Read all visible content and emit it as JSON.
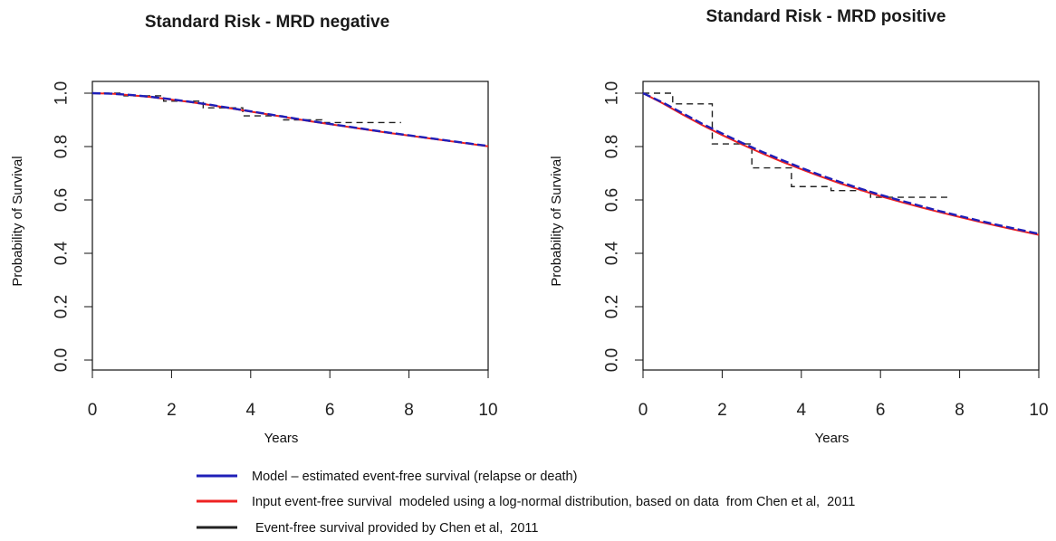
{
  "colors": {
    "model": "#1f1fb8",
    "input": "#ee2222",
    "observed": "#222222"
  },
  "chart_data": [
    {
      "type": "line",
      "title": "Standard Risk - MRD negative",
      "xlabel": "Years",
      "ylabel": "Probability of Survival",
      "xlim": [
        0,
        10
      ],
      "ylim": [
        0,
        1
      ],
      "xticks": [
        "0",
        "2",
        "4",
        "6",
        "8",
        "10"
      ],
      "yticks": [
        "0.0",
        "0.2",
        "0.4",
        "0.6",
        "0.8",
        "1.0"
      ],
      "series": [
        {
          "key": "model",
          "x": [
            0,
            0.5,
            1,
            1.5,
            2,
            2.5,
            3,
            3.5,
            4,
            4.5,
            5,
            5.5,
            6,
            6.5,
            7,
            7.5,
            8,
            8.5,
            9,
            9.5,
            10
          ],
          "y": [
            1.0,
            0.998,
            0.993,
            0.986,
            0.977,
            0.967,
            0.956,
            0.944,
            0.932,
            0.92,
            0.908,
            0.896,
            0.885,
            0.874,
            0.863,
            0.852,
            0.842,
            0.832,
            0.822,
            0.812,
            0.802
          ]
        },
        {
          "key": "input",
          "x": [
            0,
            0.5,
            1,
            1.5,
            2,
            2.5,
            3,
            3.5,
            4,
            4.5,
            5,
            5.5,
            6,
            6.5,
            7,
            7.5,
            8,
            8.5,
            9,
            9.5,
            10
          ],
          "y": [
            1.0,
            0.998,
            0.992,
            0.985,
            0.976,
            0.966,
            0.955,
            0.943,
            0.931,
            0.919,
            0.907,
            0.895,
            0.884,
            0.873,
            0.862,
            0.851,
            0.841,
            0.831,
            0.821,
            0.811,
            0.801
          ]
        },
        {
          "key": "observed",
          "step": true,
          "x": [
            0,
            0.8,
            1.8,
            2.8,
            3.8,
            4.8,
            5.8,
            7.8
          ],
          "y": [
            1.0,
            0.99,
            0.97,
            0.945,
            0.915,
            0.9,
            0.89,
            0.89
          ]
        }
      ]
    },
    {
      "type": "line",
      "title": "Standard Risk - MRD positive",
      "xlabel": "Years",
      "ylabel": "Probability of Survival",
      "xlim": [
        0,
        10
      ],
      "ylim": [
        0,
        1
      ],
      "xticks": [
        "0",
        "2",
        "4",
        "6",
        "8",
        "10"
      ],
      "yticks": [
        "0.0",
        "0.2",
        "0.4",
        "0.6",
        "0.8",
        "1.0"
      ],
      "series": [
        {
          "key": "model",
          "x": [
            0,
            0.5,
            1,
            1.5,
            2,
            2.5,
            3,
            3.5,
            4,
            4.5,
            5,
            5.5,
            6,
            6.5,
            7,
            7.5,
            8,
            8.5,
            9,
            9.5,
            10
          ],
          "y": [
            1.0,
            0.965,
            0.925,
            0.885,
            0.849,
            0.814,
            0.781,
            0.75,
            0.72,
            0.692,
            0.666,
            0.642,
            0.619,
            0.598,
            0.578,
            0.558,
            0.54,
            0.522,
            0.505,
            0.489,
            0.473
          ]
        },
        {
          "key": "input",
          "x": [
            0,
            0.5,
            1,
            1.5,
            2,
            2.5,
            3,
            3.5,
            4,
            4.5,
            5,
            5.5,
            6,
            6.5,
            7,
            7.5,
            8,
            8.5,
            9,
            9.5,
            10
          ],
          "y": [
            1.0,
            0.962,
            0.92,
            0.88,
            0.843,
            0.808,
            0.775,
            0.744,
            0.715,
            0.687,
            0.661,
            0.637,
            0.614,
            0.593,
            0.573,
            0.554,
            0.536,
            0.518,
            0.501,
            0.485,
            0.469
          ]
        },
        {
          "key": "observed",
          "step": true,
          "x": [
            0,
            0.75,
            1.75,
            2.75,
            3.75,
            4.75,
            5.75,
            7.75
          ],
          "y": [
            1.0,
            0.96,
            0.81,
            0.72,
            0.65,
            0.635,
            0.61,
            0.61
          ]
        }
      ]
    }
  ],
  "legend": [
    {
      "key": "model",
      "label": "Model – estimated event-free survival (relapse or death)"
    },
    {
      "key": "input",
      "label": "Input event-free survival  modeled using a log-normal distribution, based on data  from Chen et al,  2011"
    },
    {
      "key": "observed",
      "label": " Event-free survival provided by Chen et al,  2011"
    }
  ]
}
